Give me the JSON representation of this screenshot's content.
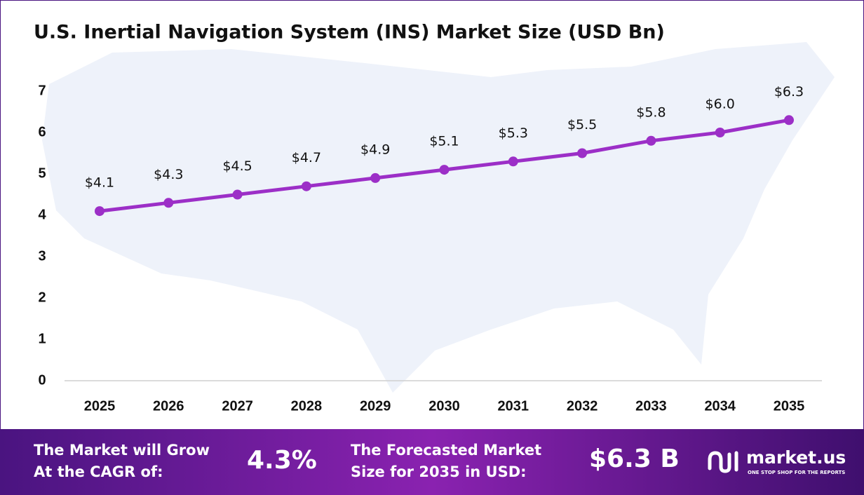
{
  "chart_data": {
    "type": "line",
    "title": "U.S. Inertial Navigation System (INS) Market Size (USD Bn)",
    "categories": [
      "2025",
      "2026",
      "2027",
      "2028",
      "2029",
      "2030",
      "2031",
      "2032",
      "2033",
      "2034",
      "2035"
    ],
    "values": [
      4.1,
      4.3,
      4.5,
      4.7,
      4.9,
      5.1,
      5.3,
      5.5,
      5.8,
      6.0,
      6.3
    ],
    "value_labels": [
      "$4.1",
      "$4.3",
      "$4.5",
      "$4.7",
      "$4.9",
      "$5.1",
      "$5.3",
      "$5.5",
      "$5.8",
      "$6.0",
      "$6.3"
    ],
    "color": "#9c2fc7",
    "ylim": [
      0,
      7
    ],
    "yticks": [
      0,
      1,
      2,
      3,
      4,
      5,
      6,
      7
    ],
    "grid": false
  },
  "footer": {
    "cagr_label": [
      "The Market will Grow",
      "At the CAGR of:"
    ],
    "cagr_value": "4.3%",
    "forecast_label": [
      "The Forecasted Market",
      "Size for 2035 in USD:"
    ],
    "forecast_value": "$6.3 B",
    "brand": "market.us",
    "tagline": "ONE STOP SHOP FOR THE REPORTS"
  }
}
